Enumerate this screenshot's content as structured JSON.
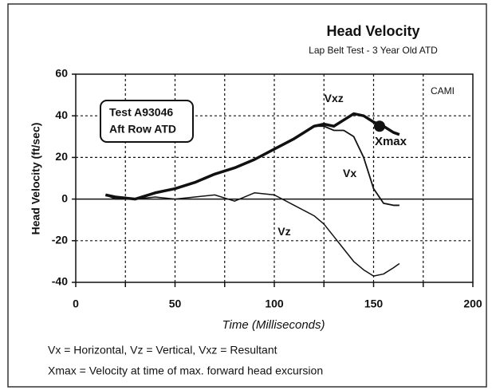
{
  "chart_data": {
    "type": "line",
    "title": "Head Velocity",
    "subtitle": "Lap Belt Test - 3 Year Old ATD",
    "xlabel": "Time (Milliseconds)",
    "ylabel": "Head Velocity (ft/sec)",
    "annotations": {
      "source": "CAMI",
      "test_box": [
        "Test A93046",
        "Aft Row ATD"
      ],
      "xmax": {
        "label": "Xmax",
        "x": 153,
        "y": 35
      }
    },
    "footer": [
      "Vx = Horizontal, Vz = Vertical, Vxz = Resultant",
      "Xmax = Velocity at time of max. forward head excursion"
    ],
    "x": [
      15,
      20,
      30,
      40,
      50,
      60,
      70,
      80,
      90,
      100,
      110,
      120,
      125,
      130,
      135,
      140,
      145,
      150,
      155,
      160,
      163
    ],
    "series": [
      {
        "name": "Vxz",
        "color": "#111111",
        "values": [
          2,
          1,
          0,
          3,
          5,
          8,
          12,
          15,
          19,
          24,
          29,
          35,
          36,
          35,
          38,
          41,
          40,
          37,
          35,
          32,
          31
        ]
      },
      {
        "name": "Vx",
        "color": "#111111",
        "values": [
          2,
          1,
          0,
          3,
          5,
          8,
          12,
          15,
          19,
          24,
          29,
          35,
          35,
          33,
          33,
          30,
          20,
          5,
          -2,
          -3,
          -3
        ]
      },
      {
        "name": "Vz",
        "color": "#111111",
        "values": [
          2,
          0,
          0,
          1,
          0,
          1,
          2,
          -1,
          3,
          2,
          -3,
          -8,
          -12,
          -18,
          -24,
          -30,
          -34,
          -37,
          -36,
          -33,
          -31
        ]
      }
    ],
    "xlim": [
      0,
      200
    ],
    "xticks": [
      0,
      50,
      100,
      150,
      200
    ],
    "xminor": [
      25,
      75,
      125,
      175
    ],
    "ylim": [
      -40,
      60
    ],
    "yticks": [
      -40,
      -20,
      0,
      20,
      40,
      60
    ],
    "grid": true
  }
}
